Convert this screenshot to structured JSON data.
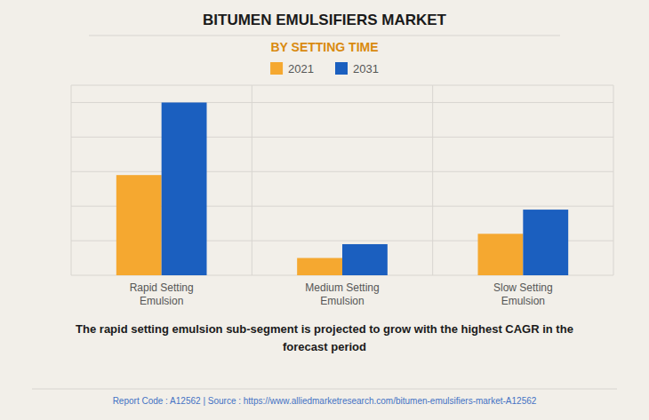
{
  "chart_data": {
    "type": "bar",
    "title": "BITUMEN EMULSIFIERS MARKET",
    "subtitle": "BY SETTING TIME",
    "categories": [
      "Rapid Setting\nEmulsion",
      "Medium Setting\nEmulsion",
      "Slow Setting\nEmulsion"
    ],
    "series": [
      {
        "name": "2021",
        "color": "#F5A830",
        "values": [
          58,
          10,
          24
        ]
      },
      {
        "name": "2031",
        "color": "#1B5FBF",
        "values": [
          100,
          18,
          38
        ]
      }
    ],
    "ylim": [
      0,
      110
    ],
    "yticks": [
      0,
      20,
      40,
      60,
      80,
      100
    ],
    "grid": true,
    "tick_labels": "x",
    "legend": "top",
    "annotations": [
      "The rapid setting emulsion sub-segment is projected to grow with the highest CAGR in the",
      "forecast period",
      "Report Code : A12562  |  Source : https://www.alliedmarketresearch.com/bitumen-emulsifiers-market-A12562"
    ]
  }
}
